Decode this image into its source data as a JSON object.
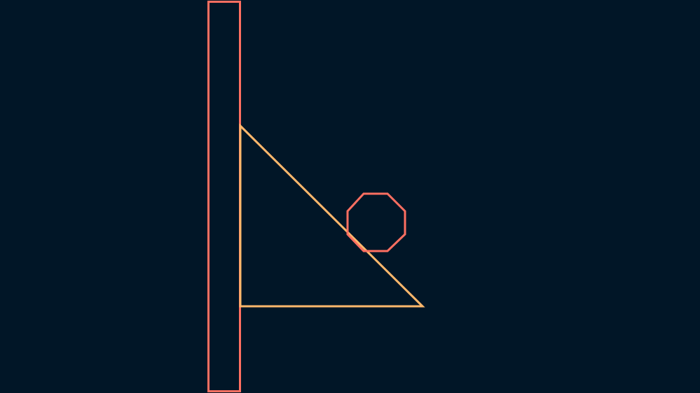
{
  "scene": {
    "background_color": "#011627",
    "wall": {
      "shape": "rectangle",
      "stroke_color": "#ff6f61"
    },
    "ramp": {
      "shape": "right-triangle",
      "stroke_color": "#ffb86c"
    },
    "ball": {
      "shape": "octagon",
      "stroke_color": "#ff6f61"
    }
  }
}
